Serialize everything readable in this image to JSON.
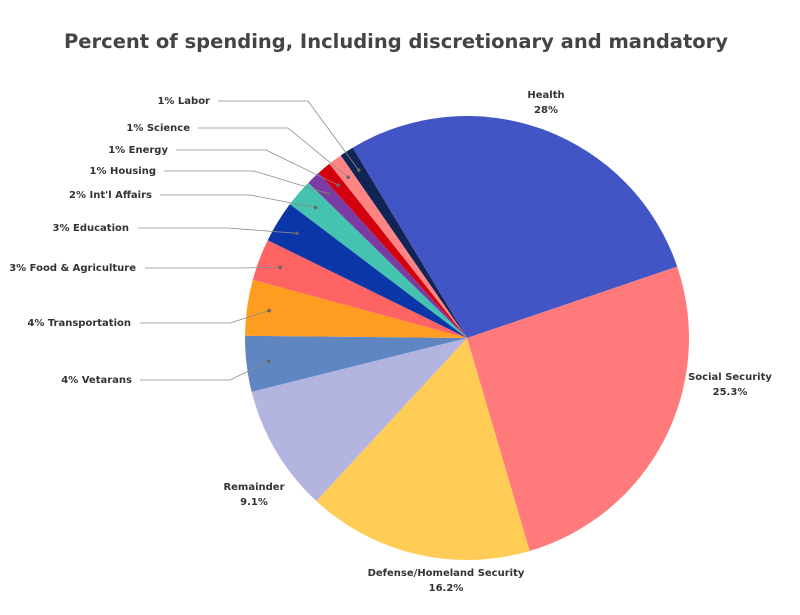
{
  "chart_data": {
    "type": "pie",
    "title": "Percent of spending, Including discretionary and mandatory",
    "slices": [
      {
        "name": "Health",
        "value": 28,
        "value_label": "28%",
        "color": "#4255c5"
      },
      {
        "name": "Social Security",
        "value": 25.3,
        "value_label": "25.3%",
        "color": "#ff7b7b"
      },
      {
        "name": "Defense/Homeland Security",
        "value": 16.2,
        "value_label": "16.2%",
        "color": "#ffcc55"
      },
      {
        "name": "Remainder",
        "value": 9.1,
        "value_label": "9.1%",
        "color": "#b3b5e0"
      },
      {
        "name": "Vetarans",
        "value": 4,
        "value_label": "4%",
        "color": "#5f86c0"
      },
      {
        "name": "Transportation",
        "value": 4,
        "value_label": "4%",
        "color": "#ff9d21"
      },
      {
        "name": "Food & Agriculture",
        "value": 3,
        "value_label": "3%",
        "color": "#ff6464"
      },
      {
        "name": "Education",
        "value": 3,
        "value_label": "3%",
        "color": "#0b36a7"
      },
      {
        "name": "Int'l Affairs",
        "value": 2,
        "value_label": "2%",
        "color": "#44c4b0"
      },
      {
        "name": "Housing",
        "value": 1,
        "value_label": "1%",
        "color": "#7a3ba3"
      },
      {
        "name": "Energy",
        "value": 1,
        "value_label": "1%",
        "color": "#d3000e"
      },
      {
        "name": "Science",
        "value": 1,
        "value_label": "1%",
        "color": "#ff8484"
      },
      {
        "name": "Labor",
        "value": 1,
        "value_label": "1%",
        "color": "#122456"
      }
    ]
  }
}
